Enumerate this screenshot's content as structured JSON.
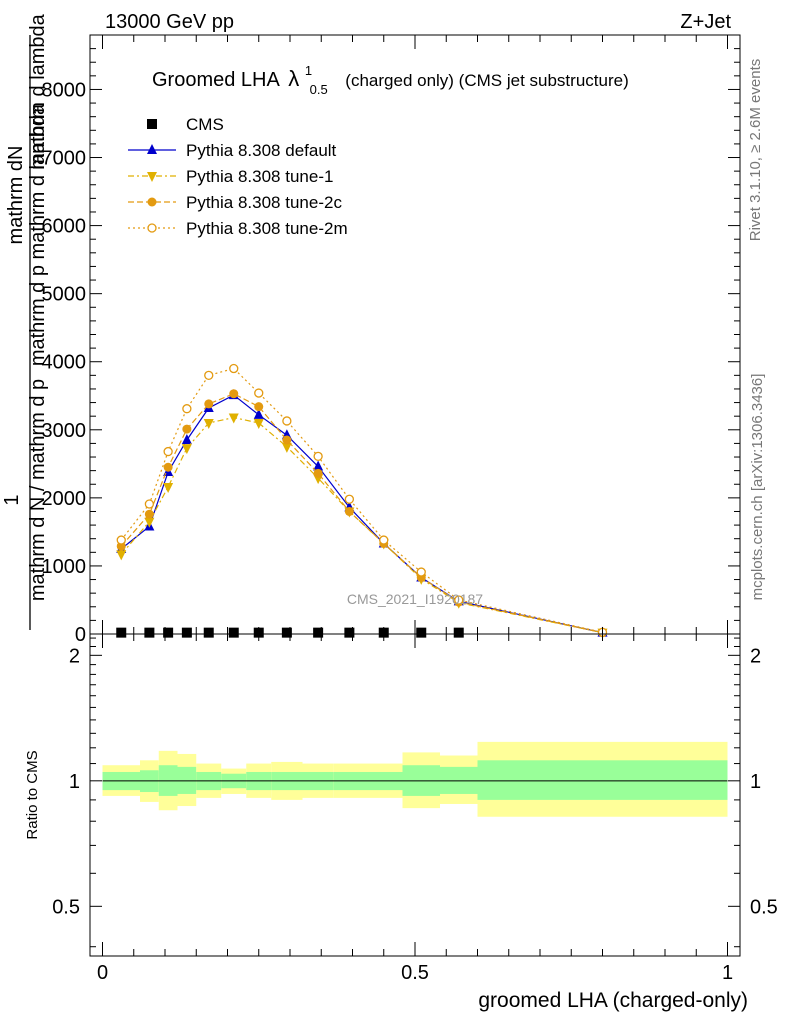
{
  "header": {
    "left": "13000 GeV pp",
    "right": "Z+Jet"
  },
  "side_labels": {
    "rivet": "Rivet 3.1.10, ≥ 2.6M events",
    "mcplots": "mcplots.cern.ch [arXiv:1306.3436]"
  },
  "chart_data": [
    {
      "type": "line",
      "title_main": "Groomed LHA",
      "title_lambda": "λ",
      "title_sup": "1",
      "title_sub": "0.5",
      "title_rest": "(charged only) (CMS jet substructure)",
      "watermark": "CMS_2021_I1920187",
      "ylabel_top": "1",
      "ylabel_num": "mathrm dN",
      "ylabel_den1": "mathrm d N / mathrm d p",
      "ylabel_den2": "mathrm d p mathrm d lambda",
      "ylabel_den3": "mathrm d lambda",
      "ylim": [
        0,
        8800
      ],
      "yticks": [
        0,
        1000,
        2000,
        3000,
        4000,
        5000,
        6000,
        7000,
        8000
      ],
      "ytick_labels": [
        "0",
        "1000",
        "2000",
        "3000",
        "4000",
        "5000",
        "6000",
        "7000",
        "8000"
      ],
      "xlim": [
        -0.02,
        1.02
      ],
      "legend": {
        "position": "top-left",
        "entries": [
          "CMS",
          "Pythia 8.308 default",
          "Pythia 8.308 tune-1",
          "Pythia 8.308 tune-2c",
          "Pythia 8.308 tune-2m"
        ]
      },
      "x": [
        0.03,
        0.075,
        0.105,
        0.135,
        0.17,
        0.21,
        0.25,
        0.295,
        0.345,
        0.395,
        0.45,
        0.51,
        0.57,
        0.8
      ],
      "series": [
        {
          "name": "CMS",
          "color": "#000000",
          "marker": "square",
          "values": [
            20,
            20,
            20,
            20,
            20,
            20,
            20,
            20,
            20,
            20,
            20,
            20,
            20,
            null
          ]
        },
        {
          "name": "Pythia 8.308 default",
          "color": "#0000cc",
          "marker": "triangle-up",
          "dash": "solid",
          "values": [
            1250,
            1580,
            2380,
            2850,
            3320,
            3510,
            3220,
            2920,
            2460,
            1860,
            1330,
            830,
            480,
            20
          ]
        },
        {
          "name": "Pythia 8.308 tune-1",
          "color": "#e0b000",
          "marker": "triangle-down",
          "dash": "dashdot",
          "values": [
            1170,
            1650,
            2160,
            2730,
            3100,
            3180,
            3100,
            2750,
            2290,
            1800,
            1330,
            810,
            460,
            20
          ]
        },
        {
          "name": "Pythia 8.308 tune-2c",
          "color": "#e39a10",
          "marker": "circle",
          "dash": "dashed",
          "values": [
            1290,
            1760,
            2450,
            3010,
            3380,
            3530,
            3340,
            2850,
            2360,
            1800,
            1330,
            830,
            470,
            20
          ]
        },
        {
          "name": "Pythia 8.308 tune-2m",
          "color": "#e39a10",
          "marker": "circle-open",
          "dash": "dotted",
          "values": [
            1380,
            1910,
            2680,
            3310,
            3800,
            3900,
            3540,
            3130,
            2610,
            1980,
            1380,
            910,
            500,
            25
          ]
        }
      ]
    },
    {
      "type": "area",
      "ylabel": "Ratio to CMS",
      "xlabel": "groomed LHA (charged-only)",
      "ylim": [
        0.38,
        2.25
      ],
      "yticks": [
        0.5,
        1,
        2
      ],
      "ytick_labels": [
        "0.5",
        "1",
        "2"
      ],
      "xlim": [
        -0.02,
        1.02
      ],
      "xticks": [
        0,
        0.5,
        1
      ],
      "xtick_labels": [
        "0",
        "0.5",
        "1"
      ],
      "bins": [
        0.0,
        0.06,
        0.09,
        0.12,
        0.15,
        0.19,
        0.23,
        0.27,
        0.32,
        0.37,
        0.42,
        0.48,
        0.54,
        0.6,
        1.0
      ],
      "inner_band": {
        "color": "#99ff99",
        "low": [
          0.95,
          0.94,
          0.92,
          0.93,
          0.95,
          0.96,
          0.95,
          0.95,
          0.95,
          0.95,
          0.95,
          0.92,
          0.93,
          0.9
        ],
        "high": [
          1.05,
          1.06,
          1.09,
          1.08,
          1.05,
          1.04,
          1.05,
          1.05,
          1.05,
          1.05,
          1.05,
          1.09,
          1.08,
          1.12
        ]
      },
      "outer_band": {
        "color": "#ffff99",
        "low": [
          0.92,
          0.89,
          0.85,
          0.87,
          0.91,
          0.93,
          0.91,
          0.9,
          0.91,
          0.91,
          0.91,
          0.86,
          0.88,
          0.82
        ],
        "high": [
          1.09,
          1.12,
          1.18,
          1.16,
          1.1,
          1.07,
          1.1,
          1.11,
          1.1,
          1.1,
          1.1,
          1.17,
          1.15,
          1.24
        ]
      }
    }
  ]
}
